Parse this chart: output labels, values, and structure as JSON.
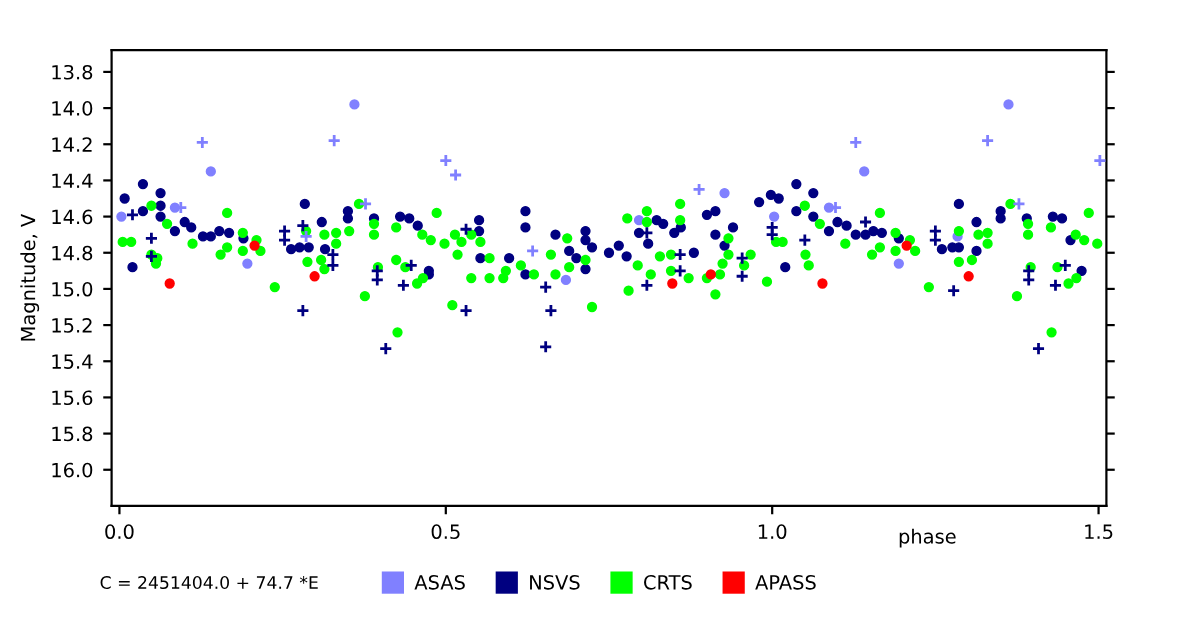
{
  "chart_data": {
    "type": "scatter",
    "xlabel": "phase",
    "ylabel": "Magnitude, V",
    "annotations": [
      "C = 2451404.0 + 74.7 *E"
    ],
    "xlim": [
      -0.012,
      1.512
    ],
    "ylim": [
      16.2,
      13.68
    ],
    "xticks": [
      {
        "value": 0,
        "label": "0.0"
      },
      {
        "value": 0.5,
        "label": "0.5"
      },
      {
        "value": 1,
        "label": "1.0"
      },
      {
        "value": 1.5,
        "label": "1.5"
      }
    ],
    "yticks": [
      {
        "value": 13.8,
        "label": "13.8"
      },
      {
        "value": 14.0,
        "label": "14.0"
      },
      {
        "value": 14.2,
        "label": "14.2"
      },
      {
        "value": 14.4,
        "label": "14.4"
      },
      {
        "value": 14.6,
        "label": "14.6"
      },
      {
        "value": 14.8,
        "label": "14.8"
      },
      {
        "value": 15.0,
        "label": "15.0"
      },
      {
        "value": 15.2,
        "label": "15.2"
      },
      {
        "value": 15.4,
        "label": "15.4"
      },
      {
        "value": 15.6,
        "label": "15.6"
      },
      {
        "value": 15.8,
        "label": "15.8"
      },
      {
        "value": 16.0,
        "label": "16.0"
      }
    ],
    "grid": false,
    "legend": "bottom",
    "series": [
      {
        "name": "ASAS",
        "color": "#8080ff",
        "marker": "circle",
        "x": [
          0.003,
          0.14,
          0.085,
          0.196,
          0.36,
          0.684,
          1.362,
          1.141,
          1.087,
          1.003,
          0.796,
          0.927,
          1.194,
          1.284
        ],
        "values": [
          14.6,
          14.35,
          14.55,
          14.86,
          13.98,
          14.95,
          13.98,
          14.35,
          14.55,
          14.6,
          14.62,
          14.47,
          14.86,
          14.71
        ]
      },
      {
        "color": "#8080ff",
        "marker": "cross",
        "x": [
          0.127,
          0.329,
          0.377,
          0.5,
          0.515,
          0.633,
          0.094,
          0.286,
          1.128,
          1.33,
          1.378,
          1.502,
          0.888,
          1.097
        ],
        "values": [
          14.19,
          14.18,
          14.53,
          14.29,
          14.37,
          14.79,
          14.55,
          14.71,
          14.19,
          14.18,
          14.53,
          14.29,
          14.45,
          14.55
        ]
      },
      {
        "name": "NSVS",
        "color": "#000080",
        "marker": "circle",
        "x": [
          0.008,
          0.02,
          0.036,
          0.036,
          0.063,
          0.063,
          0.063,
          0.085,
          0.1,
          0.11,
          0.128,
          0.14,
          0.153,
          0.168,
          0.19,
          0.263,
          0.276,
          0.284,
          0.29,
          0.31,
          0.315,
          0.35,
          0.35,
          0.39,
          0.43,
          0.444,
          0.457,
          0.474,
          0.474,
          0.551,
          0.551,
          0.553,
          0.597,
          0.622,
          0.622,
          0.622,
          0.668,
          0.689,
          0.7,
          0.714,
          0.714,
          0.714,
          0.724,
          0.75,
          0.765,
          0.777,
          0.796,
          0.81,
          0.823,
          0.833,
          0.85,
          0.86,
          0.88,
          0.9,
          0.913,
          0.913,
          0.927,
          0.94,
          0.98,
          0.998,
          1.01,
          1.02,
          1.037,
          1.037,
          1.063,
          1.063,
          1.087,
          1.1,
          1.114,
          1.128,
          1.143,
          1.155,
          1.168,
          1.194,
          1.26,
          1.276,
          1.286,
          1.286,
          1.313,
          1.313,
          1.35,
          1.35,
          1.39,
          1.43,
          1.444,
          1.457,
          1.474
        ],
        "values": [
          14.5,
          14.88,
          14.42,
          14.57,
          14.47,
          14.54,
          14.6,
          14.68,
          14.63,
          14.66,
          14.71,
          14.71,
          14.68,
          14.69,
          14.72,
          14.78,
          14.77,
          14.53,
          14.77,
          14.63,
          14.78,
          14.57,
          14.61,
          14.61,
          14.6,
          14.61,
          14.65,
          14.9,
          14.92,
          14.62,
          14.68,
          14.83,
          14.83,
          14.57,
          14.66,
          14.92,
          14.7,
          14.79,
          14.83,
          14.68,
          14.73,
          14.89,
          14.77,
          14.8,
          14.76,
          14.82,
          14.69,
          14.75,
          14.62,
          14.64,
          14.69,
          14.66,
          14.8,
          14.59,
          14.57,
          14.7,
          14.76,
          14.66,
          14.52,
          14.48,
          14.5,
          14.88,
          14.42,
          14.57,
          14.47,
          14.6,
          14.68,
          14.63,
          14.65,
          14.7,
          14.7,
          14.68,
          14.69,
          14.72,
          14.78,
          14.77,
          14.53,
          14.77,
          14.63,
          14.79,
          14.57,
          14.61,
          14.61,
          14.6,
          14.61,
          14.73,
          14.9
        ]
      },
      {
        "color": "#000080",
        "marker": "cross",
        "x": [
          0.02,
          0.049,
          0.049,
          0.253,
          0.253,
          0.281,
          0.281,
          0.327,
          0.327,
          0.395,
          0.395,
          0.408,
          0.435,
          0.447,
          0.531,
          0.531,
          0.653,
          0.661,
          0.653,
          0.808,
          0.808,
          0.859,
          0.859,
          0.954,
          0.954,
          1.0,
          1.0,
          1.05,
          1.143,
          1.25,
          1.25,
          1.278,
          1.393,
          1.393,
          1.408,
          1.434,
          1.449
        ],
        "values": [
          14.59,
          14.72,
          14.82,
          14.68,
          14.73,
          15.12,
          14.65,
          14.87,
          14.81,
          14.9,
          14.95,
          15.33,
          14.98,
          14.87,
          15.12,
          14.67,
          14.99,
          15.12,
          15.32,
          14.69,
          14.98,
          14.81,
          14.9,
          14.83,
          14.93,
          14.7,
          14.66,
          14.73,
          14.63,
          14.68,
          14.73,
          15.01,
          14.9,
          14.95,
          15.33,
          14.98,
          14.87
        ]
      },
      {
        "name": "CRTS",
        "color": "#00ff00",
        "marker": "circle",
        "x": [
          0.005,
          0.018,
          0.049,
          0.049,
          0.056,
          0.058,
          0.073,
          0.112,
          0.155,
          0.165,
          0.165,
          0.189,
          0.189,
          0.21,
          0.216,
          0.238,
          0.286,
          0.288,
          0.309,
          0.314,
          0.314,
          0.332,
          0.332,
          0.352,
          0.367,
          0.376,
          0.39,
          0.39,
          0.396,
          0.424,
          0.424,
          0.426,
          0.438,
          0.456,
          0.464,
          0.465,
          0.477,
          0.486,
          0.498,
          0.51,
          0.514,
          0.518,
          0.524,
          0.539,
          0.539,
          0.553,
          0.567,
          0.567,
          0.588,
          0.592,
          0.615,
          0.635,
          0.661,
          0.668,
          0.686,
          0.689,
          0.714,
          0.724,
          0.778,
          0.78,
          0.794,
          0.808,
          0.808,
          0.814,
          0.828,
          0.845,
          0.845,
          0.859,
          0.859,
          0.872,
          0.9,
          0.913,
          0.92,
          0.924,
          0.933,
          0.933,
          0.957,
          0.967,
          0.992,
          1.006,
          1.016,
          1.05,
          1.051,
          1.056,
          1.073,
          1.112,
          1.153,
          1.165,
          1.165,
          1.189,
          1.189,
          1.211,
          1.219,
          1.24,
          1.286,
          1.286,
          1.306,
          1.316,
          1.33,
          1.33,
          1.365,
          1.375,
          1.392,
          1.392,
          1.396,
          1.427,
          1.428,
          1.437,
          1.454,
          1.465,
          1.466,
          1.478,
          1.485,
          1.498
        ],
        "values": [
          14.74,
          14.74,
          14.54,
          14.81,
          14.86,
          14.83,
          14.64,
          14.75,
          14.81,
          14.58,
          14.77,
          14.69,
          14.79,
          14.73,
          14.79,
          14.99,
          14.68,
          14.85,
          14.84,
          14.7,
          14.89,
          14.75,
          14.69,
          14.68,
          14.53,
          15.04,
          14.64,
          14.7,
          14.88,
          14.66,
          14.84,
          15.24,
          14.88,
          14.97,
          14.7,
          14.94,
          14.73,
          14.58,
          14.75,
          15.09,
          14.7,
          14.81,
          14.74,
          14.7,
          14.94,
          14.74,
          14.83,
          14.94,
          14.94,
          14.9,
          14.87,
          14.92,
          14.81,
          14.92,
          14.72,
          14.88,
          14.84,
          15.1,
          14.61,
          15.01,
          14.87,
          14.57,
          14.63,
          14.92,
          14.82,
          14.81,
          14.9,
          14.53,
          14.62,
          14.94,
          14.94,
          15.03,
          14.92,
          14.86,
          14.72,
          14.81,
          14.87,
          14.81,
          14.96,
          14.74,
          14.74,
          14.54,
          14.81,
          14.87,
          14.64,
          14.75,
          14.81,
          14.58,
          14.77,
          14.69,
          14.79,
          14.73,
          14.79,
          14.99,
          14.68,
          14.85,
          14.84,
          14.7,
          14.75,
          14.69,
          14.53,
          15.04,
          14.64,
          14.7,
          14.88,
          14.66,
          15.24,
          14.88,
          14.97,
          14.7,
          14.94,
          14.73,
          14.58,
          14.75
        ]
      },
      {
        "name": "APASS",
        "color": "#ff0000",
        "marker": "circle",
        "x": [
          0.077,
          0.207,
          0.299,
          0.847,
          0.906,
          1.077,
          1.206,
          1.301
        ],
        "values": [
          14.97,
          14.76,
          14.93,
          14.97,
          14.92,
          14.97,
          14.76,
          14.93
        ]
      }
    ]
  }
}
